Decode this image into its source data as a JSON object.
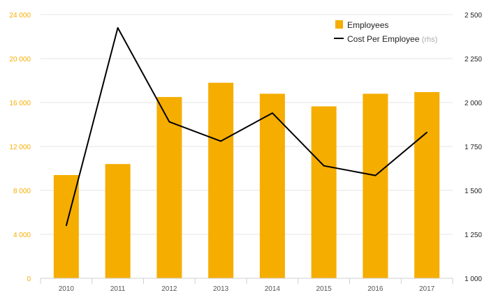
{
  "chart_data": {
    "type": "bar",
    "categories": [
      "2010",
      "2011",
      "2012",
      "2013",
      "2014",
      "2015",
      "2016",
      "2017"
    ],
    "series": [
      {
        "name": "Employees",
        "type": "bar",
        "axis": "left",
        "color": "#f5ad00",
        "values": [
          9400,
          10400,
          16500,
          17800,
          16800,
          15650,
          16800,
          16950
        ]
      },
      {
        "name": "Cost Per Employee",
        "name_suffix": "(rhs)",
        "type": "line",
        "axis": "right",
        "color": "#000000",
        "values": [
          1300,
          2425,
          1890,
          1780,
          1940,
          1640,
          1585,
          1830
        ]
      }
    ],
    "y_left": {
      "range": [
        0,
        24000
      ],
      "ticks": [
        0,
        4000,
        8000,
        12000,
        16000,
        20000,
        24000
      ],
      "tick_labels": [
        "0",
        "4 000",
        "8 000",
        "12 000",
        "16 000",
        "20 000",
        "24 000"
      ]
    },
    "y_right": {
      "range": [
        1000,
        2500
      ],
      "ticks": [
        1000,
        1250,
        1500,
        1750,
        2000,
        2250,
        2500
      ],
      "tick_labels": [
        "1 000",
        "1 250",
        "1 500",
        "1 750",
        "2 000",
        "2 250",
        "2 500"
      ]
    },
    "grid": true,
    "legend_position": "top-right",
    "title": "",
    "xlabel": "",
    "ylabel": ""
  }
}
